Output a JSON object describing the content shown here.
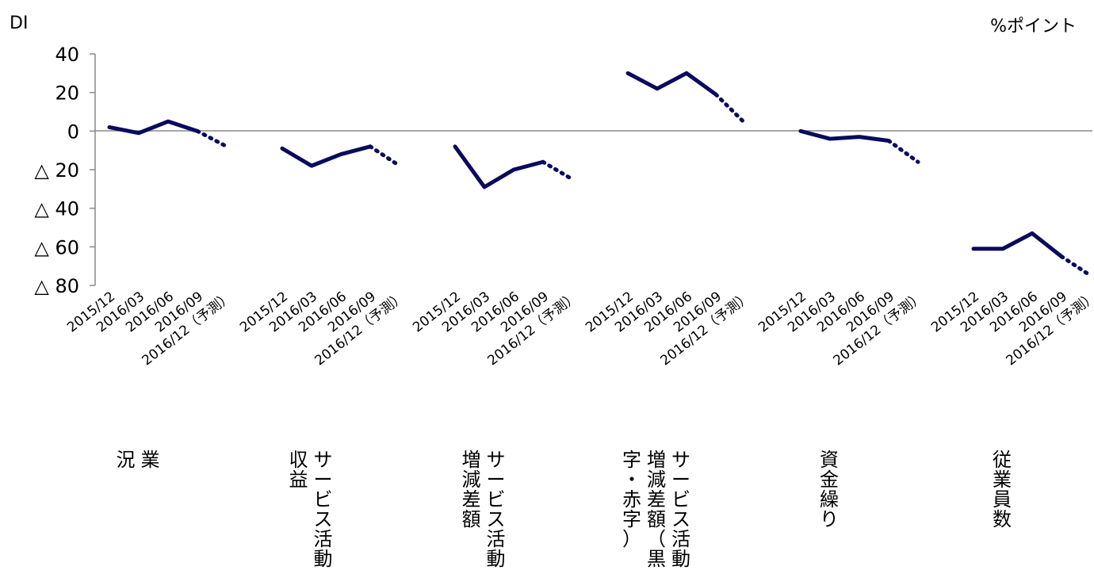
{
  "chart_data": {
    "type": "line",
    "ylabel": "DI",
    "unit_label": "%ポイント",
    "ylim": [
      -80,
      40
    ],
    "yticks": [
      {
        "value": 40,
        "label": "40"
      },
      {
        "value": 20,
        "label": "20"
      },
      {
        "value": 0,
        "label": "0"
      },
      {
        "value": -20,
        "label": "△ 20"
      },
      {
        "value": -40,
        "label": "△ 40"
      },
      {
        "value": -60,
        "label": "△ 60"
      },
      {
        "value": -80,
        "label": "△ 80"
      }
    ],
    "periods": [
      "2015/12",
      "2016/03",
      "2016/06",
      "2016/09",
      "2016/12（予測）"
    ],
    "forecast_from_index": 3,
    "line_color": "#0a0a5e",
    "groups": [
      {
        "label": [
          "業",
          "況"
        ],
        "values": [
          2,
          -1,
          5,
          0,
          -8
        ]
      },
      {
        "label": [
          "サービス活動",
          "収益"
        ],
        "values": [
          -9,
          -18,
          -12,
          -8,
          -18
        ]
      },
      {
        "label": [
          "サービス活動",
          "増減差額"
        ],
        "values": [
          -8,
          -29,
          -20,
          -16,
          -25
        ]
      },
      {
        "label": [
          "サービス活動",
          "増減差額（黒",
          "字・赤字）"
        ],
        "values": [
          30,
          22,
          30,
          19,
          4
        ]
      },
      {
        "label": [
          "資金繰り"
        ],
        "values": [
          0,
          -4,
          -3,
          -5,
          -16
        ]
      },
      {
        "label": [
          "従業員数"
        ],
        "values": [
          -61,
          -61,
          -53,
          -65,
          -75
        ]
      }
    ]
  }
}
